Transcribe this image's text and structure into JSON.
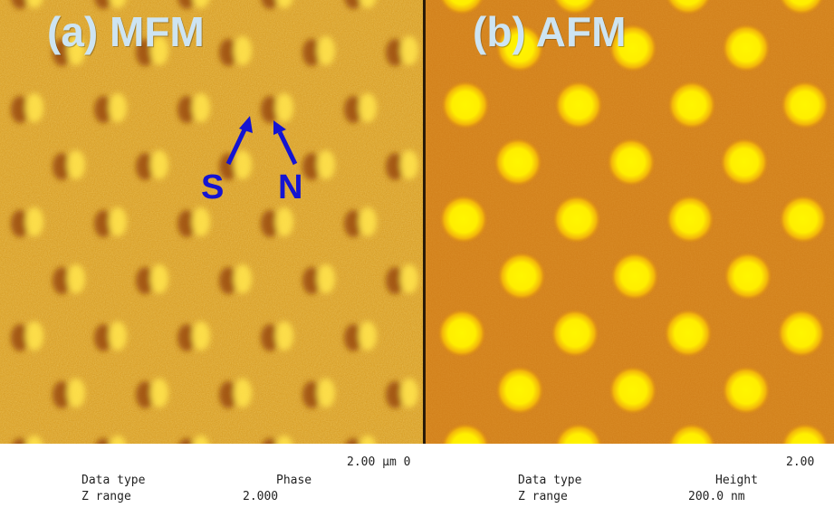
{
  "panels": {
    "mfm": {
      "title": "(a) MFM",
      "labels": {
        "south": "S",
        "north": "N"
      }
    },
    "afm": {
      "title": "(b) AFM"
    }
  },
  "footer": {
    "mfm_scale": "2.00 μm 0",
    "afm_scale": "2.00",
    "mfm_data_type_label": "Data type",
    "mfm_data_type_value": "Phase",
    "mfm_z_range_label": "Z range",
    "mfm_z_range_value": "2.000",
    "afm_data_type_label": "Data type",
    "afm_data_type_value": "Height",
    "afm_z_range_label": "Z range",
    "afm_z_range_value": "200.0 nm"
  },
  "colors": {
    "mfm_background": "#d99a1c",
    "afm_background": "#cf7a12",
    "dot_yellow": "#fff200",
    "title_text": "#cde4f2",
    "label_blue": "#1414d2"
  }
}
